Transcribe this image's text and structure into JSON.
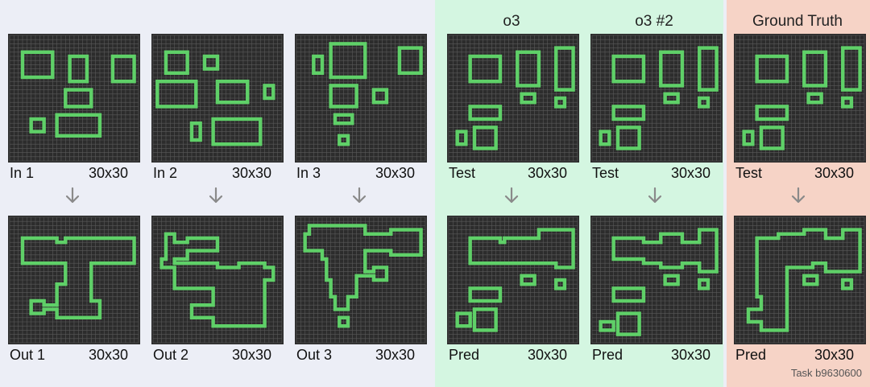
{
  "headers": {
    "o3": "o3",
    "o3_2": "o3 #2",
    "truth": "Ground Truth"
  },
  "labels": {
    "in1": "In 1",
    "in2": "In 2",
    "in3": "In 3",
    "test": "Test",
    "pred": "Pred",
    "out1": "Out 1",
    "out2": "Out 2",
    "out3": "Out 3",
    "size": "30x30"
  },
  "footer": "Task b9630600",
  "colors": {
    "cell": "#5fd068",
    "background": "#2c2c2c",
    "grid": "#5a5a5a",
    "band_green": "#d4f6e1",
    "band_red": "#f6d3c6"
  },
  "panels": [
    {
      "id": "in1",
      "rects": [
        [
          3,
          4,
          7,
          6
        ],
        [
          14,
          5,
          4,
          6
        ],
        [
          24,
          5,
          5,
          6
        ],
        [
          13,
          13,
          6,
          4
        ],
        [
          5,
          20,
          3,
          3
        ],
        [
          11,
          19,
          10,
          5
        ]
      ]
    },
    {
      "id": "in2",
      "rects": [
        [
          3,
          4,
          5,
          5
        ],
        [
          12,
          5,
          3,
          3
        ],
        [
          1,
          11,
          9,
          6
        ],
        [
          15,
          11,
          7,
          5
        ],
        [
          26,
          12,
          2,
          3
        ],
        [
          9,
          21,
          2,
          4
        ],
        [
          14,
          20,
          11,
          6
        ]
      ]
    },
    {
      "id": "in3",
      "rects": [
        [
          4,
          5,
          2,
          4
        ],
        [
          8,
          2,
          8,
          8
        ],
        [
          24,
          3,
          5,
          6
        ],
        [
          8,
          12,
          6,
          5
        ],
        [
          18,
          13,
          3,
          3
        ],
        [
          9,
          19,
          4,
          2
        ],
        [
          10,
          24,
          2,
          2
        ]
      ]
    },
    {
      "id": "test1",
      "rects": [
        [
          5,
          5,
          7,
          6
        ],
        [
          16,
          4,
          5,
          8
        ],
        [
          25,
          3,
          4,
          10
        ],
        [
          5,
          17,
          7,
          3
        ],
        [
          17,
          14,
          3,
          2
        ],
        [
          25,
          15,
          2,
          2
        ],
        [
          2,
          23,
          2,
          3
        ],
        [
          6,
          22,
          5,
          5
        ]
      ]
    },
    {
      "id": "test2",
      "rects": [
        [
          5,
          5,
          7,
          6
        ],
        [
          16,
          4,
          5,
          8
        ],
        [
          25,
          3,
          4,
          10
        ],
        [
          5,
          17,
          7,
          3
        ],
        [
          17,
          14,
          3,
          2
        ],
        [
          25,
          15,
          2,
          2
        ],
        [
          2,
          23,
          2,
          3
        ],
        [
          6,
          22,
          5,
          5
        ]
      ]
    },
    {
      "id": "test3",
      "rects": [
        [
          5,
          5,
          7,
          6
        ],
        [
          16,
          4,
          5,
          8
        ],
        [
          25,
          3,
          4,
          10
        ],
        [
          5,
          17,
          7,
          3
        ],
        [
          17,
          14,
          3,
          2
        ],
        [
          25,
          15,
          2,
          2
        ],
        [
          2,
          23,
          2,
          3
        ],
        [
          6,
          22,
          5,
          5
        ]
      ]
    },
    {
      "id": "out1",
      "polys": [
        [
          [
            3,
            5
          ],
          [
            11,
            5
          ],
          [
            11,
            6
          ],
          [
            13,
            6
          ],
          [
            13,
            5
          ],
          [
            29,
            5
          ],
          [
            29,
            11
          ],
          [
            19,
            11
          ],
          [
            19,
            20
          ],
          [
            21,
            20
          ],
          [
            21,
            24
          ],
          [
            11,
            24
          ],
          [
            11,
            22
          ],
          [
            8,
            22
          ],
          [
            8,
            23
          ],
          [
            5,
            23
          ],
          [
            5,
            20
          ],
          [
            8,
            20
          ],
          [
            8,
            21
          ],
          [
            11,
            21
          ],
          [
            11,
            16
          ],
          [
            13,
            16
          ],
          [
            13,
            11
          ],
          [
            3,
            11
          ]
        ]
      ],
      "rects": []
    },
    {
      "id": "out2",
      "polys": [
        [
          [
            3,
            4
          ],
          [
            5,
            4
          ],
          [
            5,
            6
          ],
          [
            8,
            6
          ],
          [
            8,
            5
          ],
          [
            15,
            5
          ],
          [
            15,
            8
          ],
          [
            8,
            8
          ],
          [
            8,
            10
          ],
          [
            5,
            10
          ],
          [
            5,
            11
          ],
          [
            15,
            11
          ],
          [
            15,
            12
          ],
          [
            20,
            12
          ],
          [
            20,
            11
          ],
          [
            26,
            11
          ],
          [
            26,
            12
          ],
          [
            28,
            12
          ],
          [
            28,
            15
          ],
          [
            26,
            15
          ],
          [
            26,
            26
          ],
          [
            14,
            26
          ],
          [
            14,
            24
          ],
          [
            9,
            24
          ],
          [
            9,
            21
          ],
          [
            14,
            21
          ],
          [
            14,
            17
          ],
          [
            5,
            17
          ],
          [
            5,
            12
          ],
          [
            2,
            12
          ],
          [
            2,
            10
          ],
          [
            3,
            10
          ]
        ]
      ],
      "rects": []
    },
    {
      "id": "out3",
      "polys": [
        [
          [
            2,
            4
          ],
          [
            3,
            4
          ],
          [
            3,
            2
          ],
          [
            16,
            2
          ],
          [
            16,
            4
          ],
          [
            22,
            4
          ],
          [
            22,
            3
          ],
          [
            29,
            3
          ],
          [
            29,
            9
          ],
          [
            22,
            9
          ],
          [
            22,
            8
          ],
          [
            16,
            8
          ],
          [
            16,
            13
          ],
          [
            18,
            13
          ],
          [
            18,
            12
          ],
          [
            21,
            12
          ],
          [
            21,
            15
          ],
          [
            18,
            15
          ],
          [
            18,
            14
          ],
          [
            14,
            14
          ],
          [
            14,
            19
          ],
          [
            12,
            19
          ],
          [
            12,
            22
          ],
          [
            9,
            22
          ],
          [
            9,
            19
          ],
          [
            8,
            19
          ],
          [
            8,
            15
          ],
          [
            7,
            15
          ],
          [
            7,
            10
          ],
          [
            6,
            10
          ],
          [
            6,
            8
          ],
          [
            2,
            8
          ]
        ]
      ],
      "rects": [
        [
          10,
          24,
          2,
          2
        ]
      ]
    },
    {
      "id": "pred1",
      "polys": [
        [
          [
            5,
            5
          ],
          [
            12,
            5
          ],
          [
            12,
            6
          ],
          [
            13,
            6
          ],
          [
            13,
            5
          ],
          [
            21,
            5
          ],
          [
            21,
            3
          ],
          [
            29,
            3
          ],
          [
            29,
            12
          ],
          [
            25,
            12
          ],
          [
            25,
            11
          ],
          [
            5,
            11
          ]
        ]
      ],
      "rects": [
        [
          17,
          14,
          3,
          2
        ],
        [
          25,
          15,
          2,
          2
        ],
        [
          5,
          17,
          7,
          3
        ],
        [
          2,
          23,
          3,
          3
        ],
        [
          6,
          22,
          5,
          5
        ]
      ]
    },
    {
      "id": "pred2",
      "polys": [
        [
          [
            5,
            5
          ],
          [
            12,
            5
          ],
          [
            12,
            6
          ],
          [
            16,
            6
          ],
          [
            16,
            4
          ],
          [
            21,
            4
          ],
          [
            21,
            6
          ],
          [
            25,
            6
          ],
          [
            25,
            3
          ],
          [
            29,
            3
          ],
          [
            29,
            13
          ],
          [
            25,
            13
          ],
          [
            25,
            11
          ],
          [
            21,
            11
          ],
          [
            21,
            12
          ],
          [
            16,
            12
          ],
          [
            16,
            11
          ],
          [
            12,
            11
          ],
          [
            12,
            10
          ],
          [
            5,
            10
          ]
        ]
      ],
      "rects": [
        [
          17,
          14,
          3,
          2
        ],
        [
          25,
          15,
          2,
          2
        ],
        [
          5,
          17,
          7,
          3
        ],
        [
          2,
          25,
          3,
          2
        ],
        [
          6,
          23,
          5,
          5
        ]
      ]
    },
    {
      "id": "truth",
      "polys": [
        [
          [
            5,
            5
          ],
          [
            10,
            5
          ],
          [
            10,
            4
          ],
          [
            16,
            4
          ],
          [
            16,
            3
          ],
          [
            21,
            3
          ],
          [
            21,
            5
          ],
          [
            25,
            5
          ],
          [
            25,
            3
          ],
          [
            29,
            3
          ],
          [
            29,
            13
          ],
          [
            21,
            13
          ],
          [
            21,
            11
          ],
          [
            18,
            11
          ],
          [
            18,
            12
          ],
          [
            12,
            12
          ],
          [
            12,
            27
          ],
          [
            6,
            27
          ],
          [
            6,
            25
          ],
          [
            3,
            25
          ],
          [
            3,
            22
          ],
          [
            6,
            22
          ],
          [
            6,
            19
          ],
          [
            5,
            19
          ]
        ]
      ],
      "rects": [
        [
          16,
          14,
          3,
          2
        ],
        [
          25,
          15,
          2,
          2
        ]
      ]
    }
  ]
}
